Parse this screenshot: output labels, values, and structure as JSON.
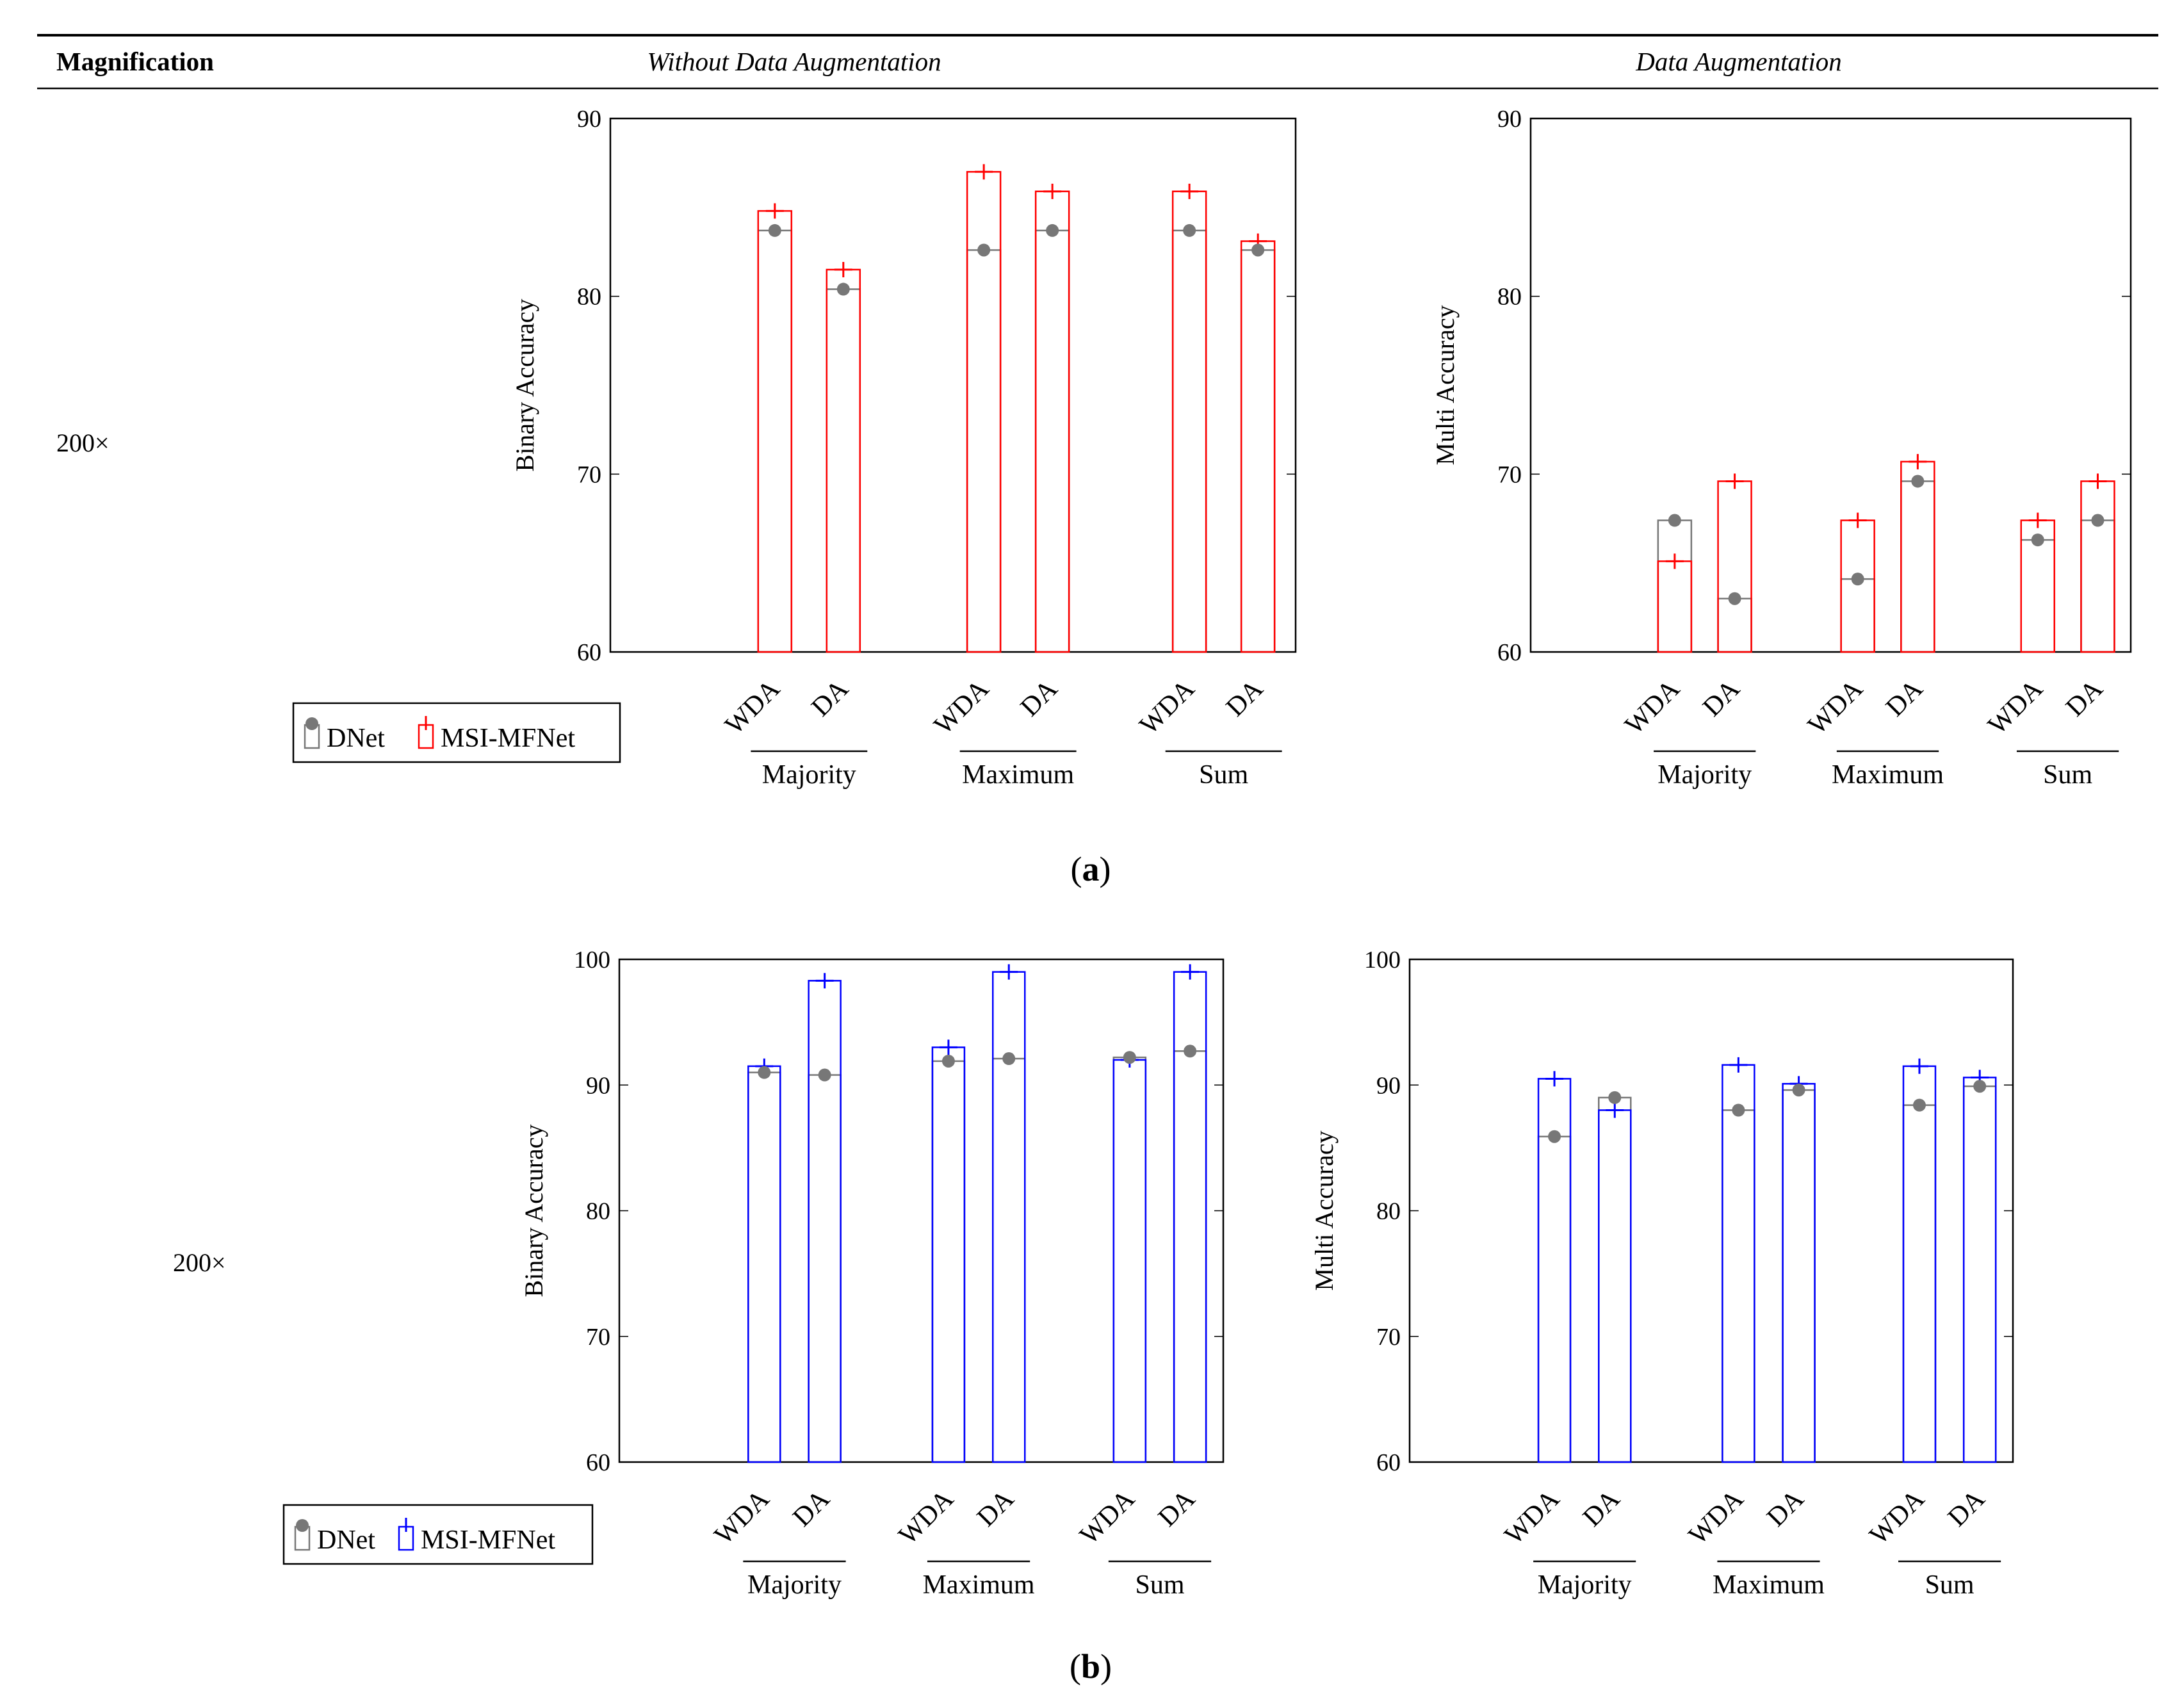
{
  "header": {
    "magnification": "Magnification",
    "without_aug": "Without Data Augmentation",
    "with_aug": "Data Augmentation"
  },
  "colors": {
    "dnet": "#777777",
    "msi_a": "#ff0000",
    "msi_b": "#0000ff"
  },
  "panels": [
    {
      "label": "(a)",
      "label_prefix": "(",
      "label_letter": "a",
      "label_suffix": ")",
      "magnification": "200×",
      "legend": {
        "dnet": "DNet",
        "msi": "MSI-MFNet"
      },
      "chart_data": [
        {
          "type": "bar",
          "ylabel": "Binary Accuracy",
          "ylim": [
            60,
            90
          ],
          "yticks": [
            60,
            70,
            80,
            90
          ],
          "categories": [
            "WDA",
            "DA",
            "WDA",
            "DA",
            "WDA",
            "DA"
          ],
          "groups": [
            "Majority",
            "Maximum",
            "Sum"
          ],
          "series": [
            {
              "name": "DNet",
              "values": [
                83.7,
                80.4,
                82.6,
                83.7,
                83.7,
                82.6
              ]
            },
            {
              "name": "MSI-MFNet",
              "values": [
                84.8,
                81.5,
                87.0,
                85.9,
                85.9,
                83.1
              ]
            }
          ]
        },
        {
          "type": "bar",
          "ylabel": "Multi Accuracy",
          "ylim": [
            60,
            90
          ],
          "yticks": [
            60,
            70,
            80,
            90
          ],
          "categories": [
            "WDA",
            "DA",
            "WDA",
            "DA",
            "WDA",
            "DA"
          ],
          "groups": [
            "Majority",
            "Maximum",
            "Sum"
          ],
          "series": [
            {
              "name": "DNet",
              "values": [
                67.4,
                63.0,
                64.1,
                69.6,
                66.3,
                67.4
              ]
            },
            {
              "name": "MSI-MFNet",
              "values": [
                65.1,
                69.6,
                67.4,
                70.7,
                67.4,
                69.6
              ]
            }
          ]
        }
      ]
    },
    {
      "label": "(b)",
      "label_prefix": "(",
      "label_letter": "b",
      "label_suffix": ")",
      "magnification": "200×",
      "legend": {
        "dnet": "DNet",
        "msi": "MSI-MFNet"
      },
      "chart_data": [
        {
          "type": "bar",
          "ylabel": "Binary Accuracy",
          "ylim": [
            60,
            100
          ],
          "yticks": [
            60,
            70,
            80,
            90,
            100
          ],
          "categories": [
            "WDA",
            "DA",
            "WDA",
            "DA",
            "WDA",
            "DA"
          ],
          "groups": [
            "Majority",
            "Maximum",
            "Sum"
          ],
          "series": [
            {
              "name": "DNet",
              "values": [
                91.0,
                90.8,
                91.9,
                92.1,
                92.2,
                92.7
              ]
            },
            {
              "name": "MSI-MFNet",
              "values": [
                91.5,
                98.3,
                93.0,
                99.0,
                92.0,
                99.0
              ]
            }
          ]
        },
        {
          "type": "bar",
          "ylabel": "Multi Accuracy",
          "ylim": [
            60,
            100
          ],
          "yticks": [
            60,
            70,
            80,
            90,
            100
          ],
          "categories": [
            "WDA",
            "DA",
            "WDA",
            "DA",
            "WDA",
            "DA"
          ],
          "groups": [
            "Majority",
            "Maximum",
            "Sum"
          ],
          "series": [
            {
              "name": "DNet",
              "values": [
                85.9,
                89.0,
                88.0,
                89.6,
                88.4,
                89.9
              ]
            },
            {
              "name": "MSI-MFNet",
              "values": [
                90.5,
                88.0,
                91.6,
                90.1,
                91.5,
                90.6
              ]
            }
          ]
        }
      ]
    }
  ]
}
